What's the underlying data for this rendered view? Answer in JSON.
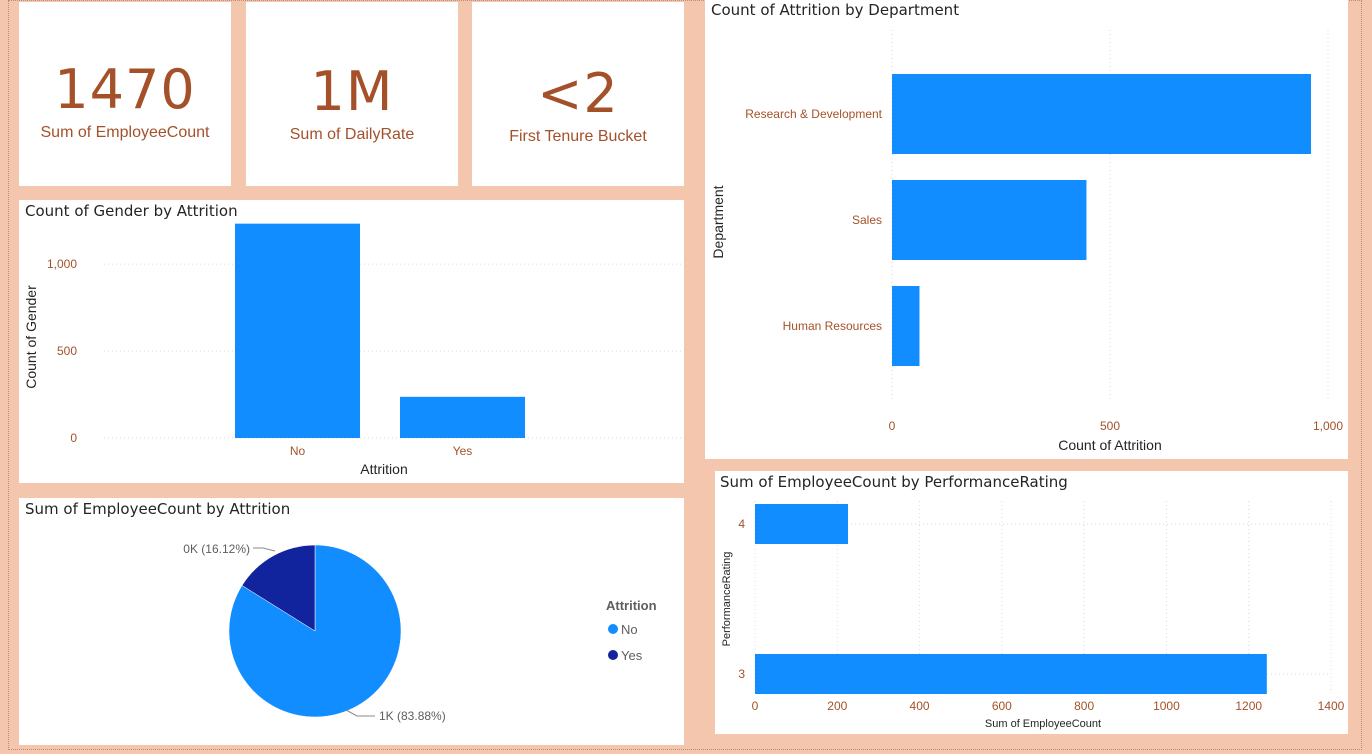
{
  "kpis": [
    {
      "value": "1470",
      "label": "Sum of EmployeeCount"
    },
    {
      "value": "1M",
      "label": "Sum of DailyRate"
    },
    {
      "value": "<2",
      "label": "First Tenure Bucket"
    }
  ],
  "colors": {
    "bar": "#118dff",
    "dark": "#12239e",
    "accent_text": "#a4512a",
    "grid": "#d9d9d9",
    "background": "#f4c6ae"
  },
  "chart_data": [
    {
      "id": "gender",
      "type": "bar",
      "title": "Count of Gender by Attrition",
      "xlabel": "Attrition",
      "ylabel": "Count of Gender",
      "categories": [
        "No",
        "Yes"
      ],
      "values": [
        1233,
        237
      ],
      "ylim": [
        0,
        1300
      ],
      "yticks": [
        0,
        500,
        1000
      ],
      "ytick_labels": [
        "0",
        "500",
        "1,000"
      ],
      "grid": true
    },
    {
      "id": "pie",
      "type": "pie",
      "title": "Sum of EmployeeCount by Attrition",
      "categories": [
        "No",
        "Yes"
      ],
      "values": [
        1233,
        237
      ],
      "data_labels": [
        "1K (83.88%)",
        "0K (16.12%)"
      ],
      "legend_title": "Attrition",
      "legend_position": "right"
    },
    {
      "id": "dept",
      "type": "bar",
      "orientation": "horizontal",
      "title": "Count of Attrition by Department",
      "xlabel": "Count of Attrition",
      "ylabel": "Department",
      "categories": [
        "Research & Development",
        "Sales",
        "Human Resources"
      ],
      "values": [
        961,
        446,
        63
      ],
      "xlim": [
        0,
        1000
      ],
      "xticks": [
        0,
        500,
        1000
      ],
      "xtick_labels": [
        "0",
        "500",
        "1,000"
      ],
      "grid": true
    },
    {
      "id": "perf",
      "type": "bar",
      "orientation": "horizontal",
      "title": "Sum of EmployeeCount by PerformanceRating",
      "xlabel": "Sum of EmployeeCount",
      "ylabel": "PerformanceRating",
      "categories": [
        "4",
        "3"
      ],
      "values": [
        226,
        1244
      ],
      "xlim": [
        0,
        1400
      ],
      "xticks": [
        0,
        200,
        400,
        600,
        800,
        1000,
        1200,
        1400
      ],
      "xtick_labels": [
        "0",
        "200",
        "400",
        "600",
        "800",
        "1000",
        "1200",
        "1400"
      ],
      "grid": true
    }
  ]
}
